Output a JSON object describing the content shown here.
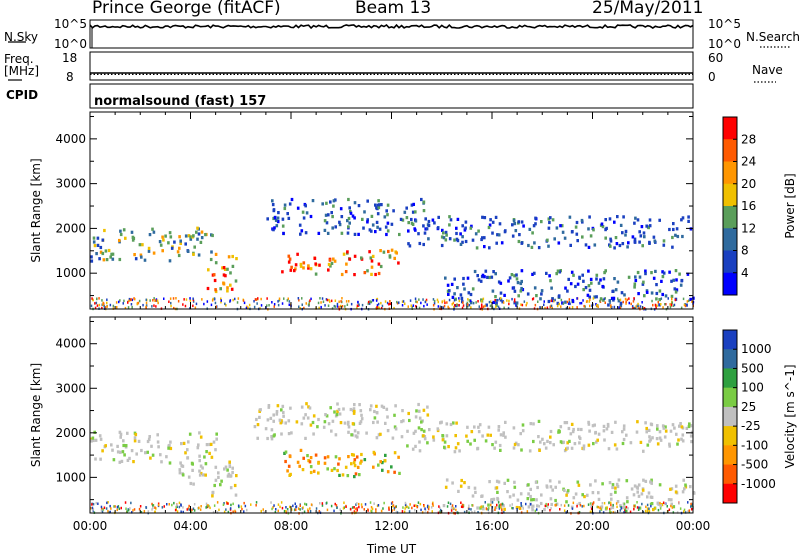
{
  "header": {
    "station": "Prince George (fitACF)",
    "beam": "Beam 13",
    "date": "25/May/2011"
  },
  "top_panel": {
    "left_label": "N.Sky",
    "right_label": "N.Search",
    "left_ticks": [
      "10^5",
      "10^0"
    ],
    "right_ticks": [
      "10^5",
      "10^0"
    ]
  },
  "freq_panel": {
    "left_label_1": "Freq.",
    "left_label_2": "[MHz]",
    "right_label": "Nave",
    "left_ticks": [
      "18",
      "8"
    ],
    "right_ticks": [
      "60",
      "0"
    ],
    "freq_value_mhz": 10.5,
    "nave_value": 12
  },
  "cpid": {
    "label": "CPID",
    "text": "normalsound (fast) 157"
  },
  "chart_data": [
    {
      "type": "heatmap",
      "title": "",
      "ylabel": "Slant Range [km]",
      "ylim": [
        200,
        4600
      ],
      "y_ticks": [
        "1000",
        "2000",
        "3000",
        "4000"
      ],
      "x_ticks": [
        "00:00",
        "04:00",
        "08:00",
        "12:00",
        "16:00",
        "20:00",
        "00:00"
      ],
      "colorbar_label": "Power [dB]",
      "colorbar_ticks": [
        "28",
        "24",
        "20",
        "16",
        "12",
        "8",
        "4"
      ],
      "colors": [
        "#ff0000",
        "#ff5a00",
        "#ff9600",
        "#f0c000",
        "#5a9e5a",
        "#2f6a9e",
        "#1a40c0",
        "#0000ff"
      ],
      "regions": [
        {
          "t0": 0.0,
          "t1": 5.0,
          "r0": 1300,
          "r1": 2050,
          "level": "mid"
        },
        {
          "t0": 4.6,
          "t1": 5.8,
          "r0": 600,
          "r1": 1500,
          "level": "high"
        },
        {
          "t0": 7.6,
          "t1": 12.3,
          "r0": 1000,
          "r1": 1550,
          "level": "high"
        },
        {
          "t0": 7.0,
          "t1": 13.5,
          "r0": 1900,
          "r1": 2700,
          "level": "low"
        },
        {
          "t0": 12.5,
          "t1": 24.0,
          "r0": 1600,
          "r1": 2300,
          "level": "low"
        },
        {
          "t0": 14.0,
          "t1": 24.0,
          "r0": 300,
          "r1": 1100,
          "level": "low"
        }
      ]
    },
    {
      "type": "heatmap",
      "title": "",
      "ylabel": "Slant Range [km]",
      "xlabel": "Time UT",
      "ylim": [
        200,
        4600
      ],
      "y_ticks": [
        "1000",
        "2000",
        "3000",
        "4000"
      ],
      "x_ticks": [
        "00:00",
        "04:00",
        "08:00",
        "12:00",
        "16:00",
        "20:00",
        "00:00"
      ],
      "colorbar_label": "Velocity [m s^-1]",
      "colorbar_ticks": [
        "1000",
        "500",
        "100",
        "25",
        "-25",
        "-100",
        "-500",
        "-1000"
      ],
      "colors": [
        "#1a40c0",
        "#2f6a9e",
        "#2ea040",
        "#7acc44",
        "#c0c0c0",
        "#f0c000",
        "#ff9600",
        "#ff5a00",
        "#ff0000"
      ],
      "regions": [
        {
          "t0": 0.0,
          "t1": 5.0,
          "r0": 1350,
          "r1": 2050,
          "level": "ground"
        },
        {
          "t0": 3.5,
          "t1": 5.8,
          "r0": 600,
          "r1": 1400,
          "level": "ground"
        },
        {
          "t0": 7.6,
          "t1": 12.3,
          "r0": 1050,
          "r1": 1650,
          "level": "neg"
        },
        {
          "t0": 6.5,
          "t1": 13.5,
          "r0": 1900,
          "r1": 2700,
          "level": "ground"
        },
        {
          "t0": 12.5,
          "t1": 24.0,
          "r0": 1600,
          "r1": 2300,
          "level": "ground"
        },
        {
          "t0": 14.0,
          "t1": 24.0,
          "r0": 300,
          "r1": 1000,
          "level": "ground"
        }
      ]
    }
  ]
}
